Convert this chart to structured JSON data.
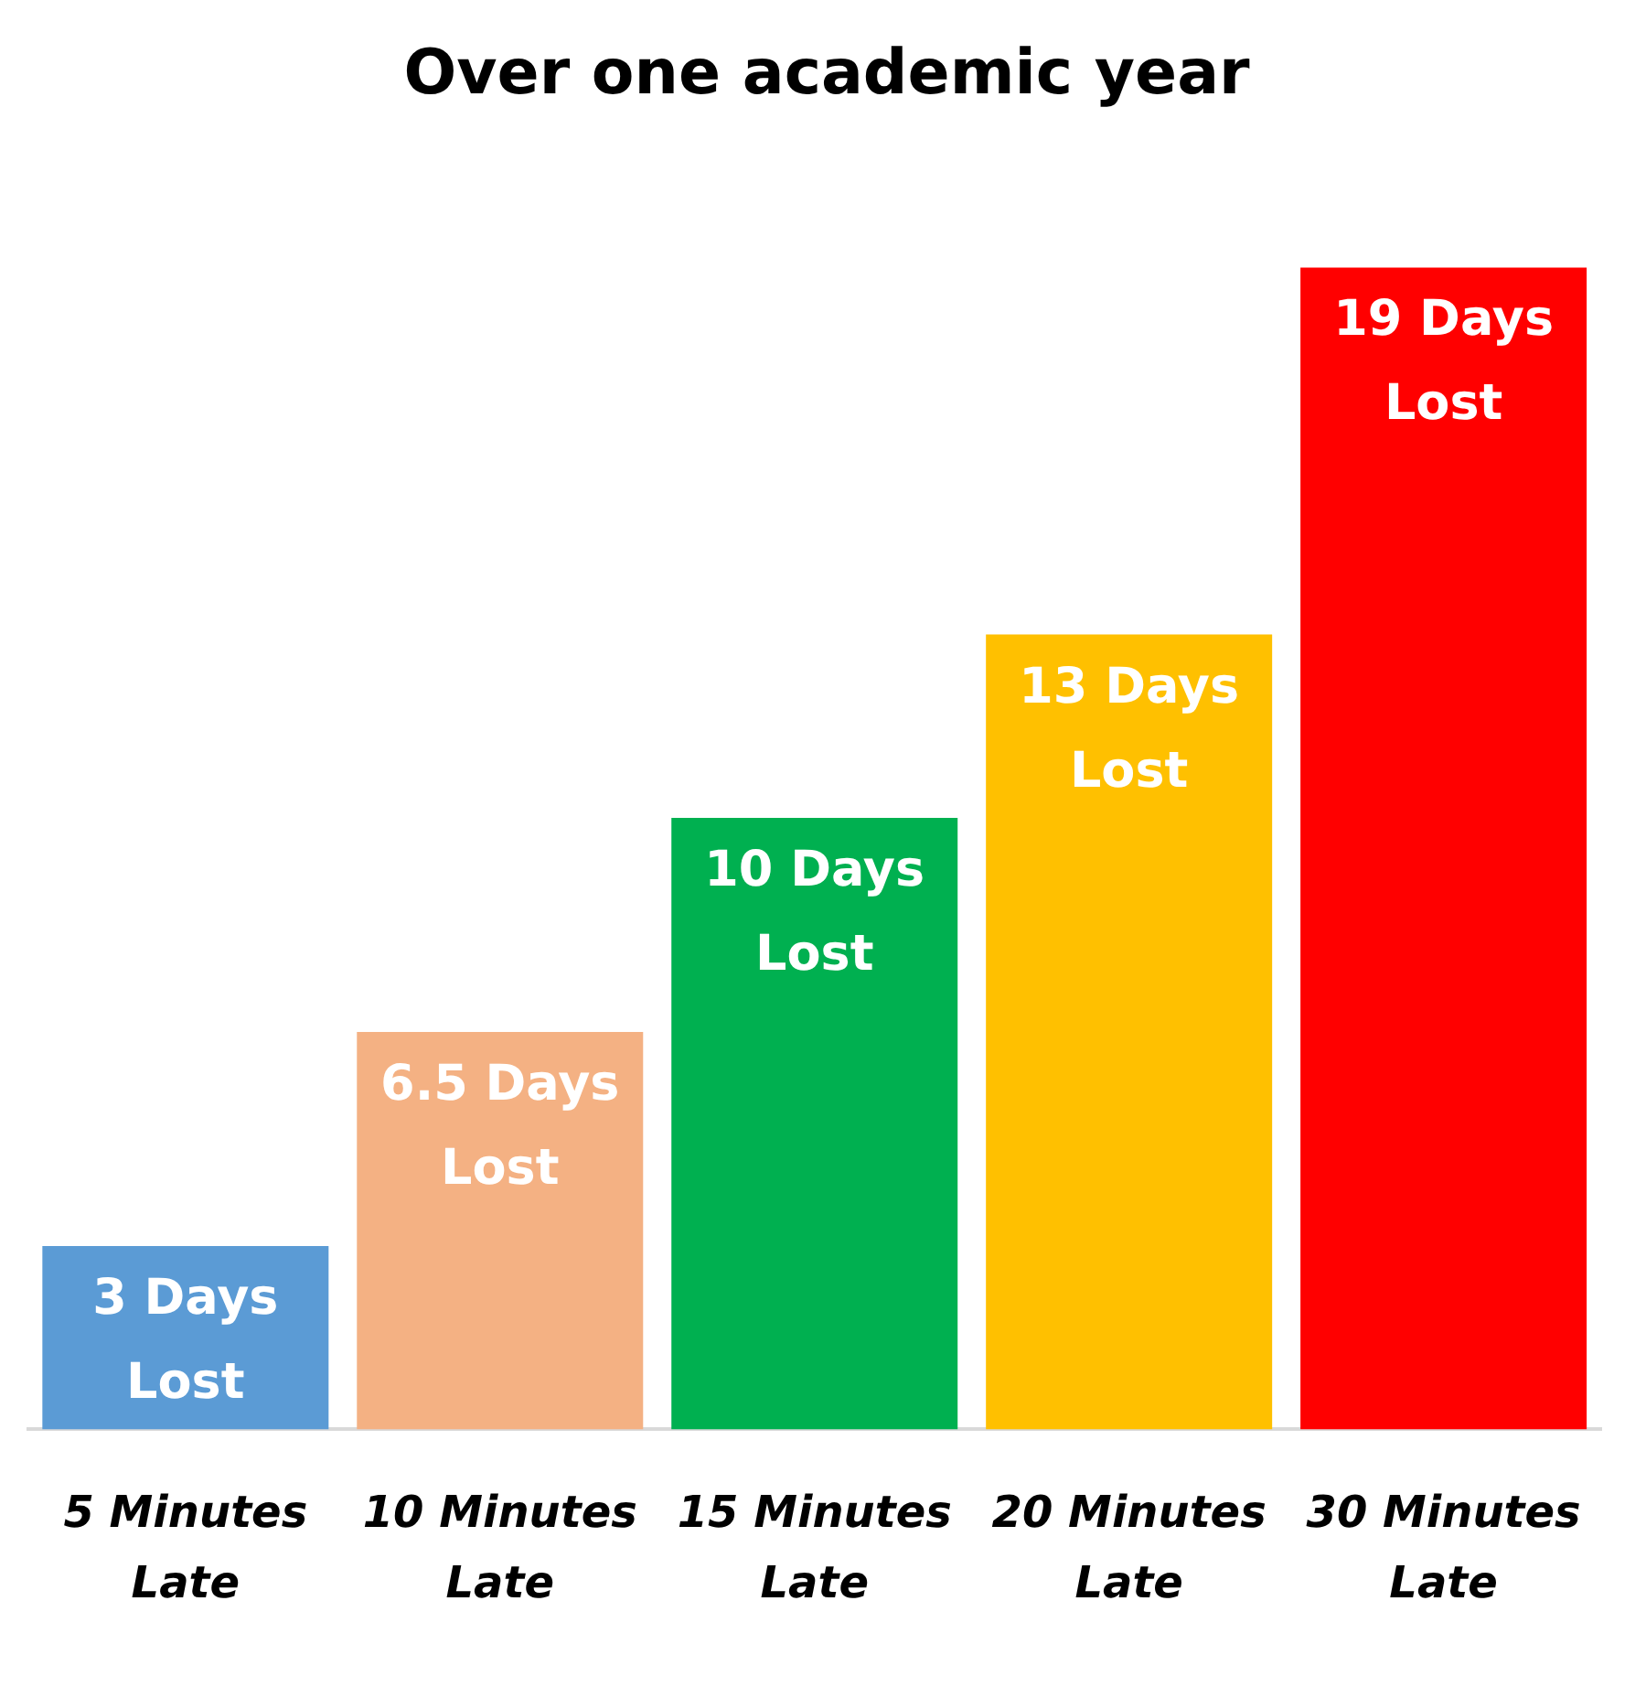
{
  "chart_data": {
    "type": "bar",
    "title": "Over one academic year",
    "categories": [
      "5 Minutes Late",
      "10 Minutes Late",
      "15 Minutes Late",
      "20 Minutes Late",
      "30 Minutes Late"
    ],
    "values": [
      3,
      6.5,
      10,
      13,
      19
    ],
    "colors": [
      "#5b9bd5",
      "#f4b183",
      "#00b050",
      "#ffc000",
      "#ff0000"
    ],
    "value_labels": [
      "3 Days Lost",
      "6.5 Days Lost",
      "10 Days Lost",
      "13 Days Lost",
      "19 Days Lost"
    ],
    "grid": false,
    "legend": false
  }
}
